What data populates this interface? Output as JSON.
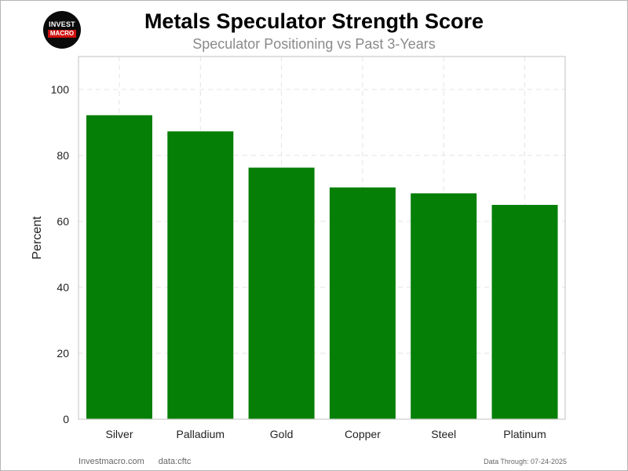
{
  "brand": {
    "logo_line1": "INVEST",
    "logo_line2": "MACRO",
    "site": "Investmacro.com",
    "source": "data:cftc"
  },
  "data_through": "Data Through: 07-24-2025",
  "chart_data": {
    "type": "bar",
    "title": "Metals Speculator Strength Score",
    "subtitle": "Speculator Positioning vs Past 3-Years",
    "xlabel": "",
    "ylabel": "Percent",
    "categories": [
      "Silver",
      "Palladium",
      "Gold",
      "Copper",
      "Steel",
      "Platinum"
    ],
    "values": [
      92.2,
      87.3,
      76.3,
      70.3,
      68.5,
      65.0
    ],
    "ylim": [
      0,
      110
    ],
    "yticks": [
      0,
      20,
      40,
      60,
      80,
      100
    ],
    "grid": true,
    "bar_color": "#067f06"
  }
}
